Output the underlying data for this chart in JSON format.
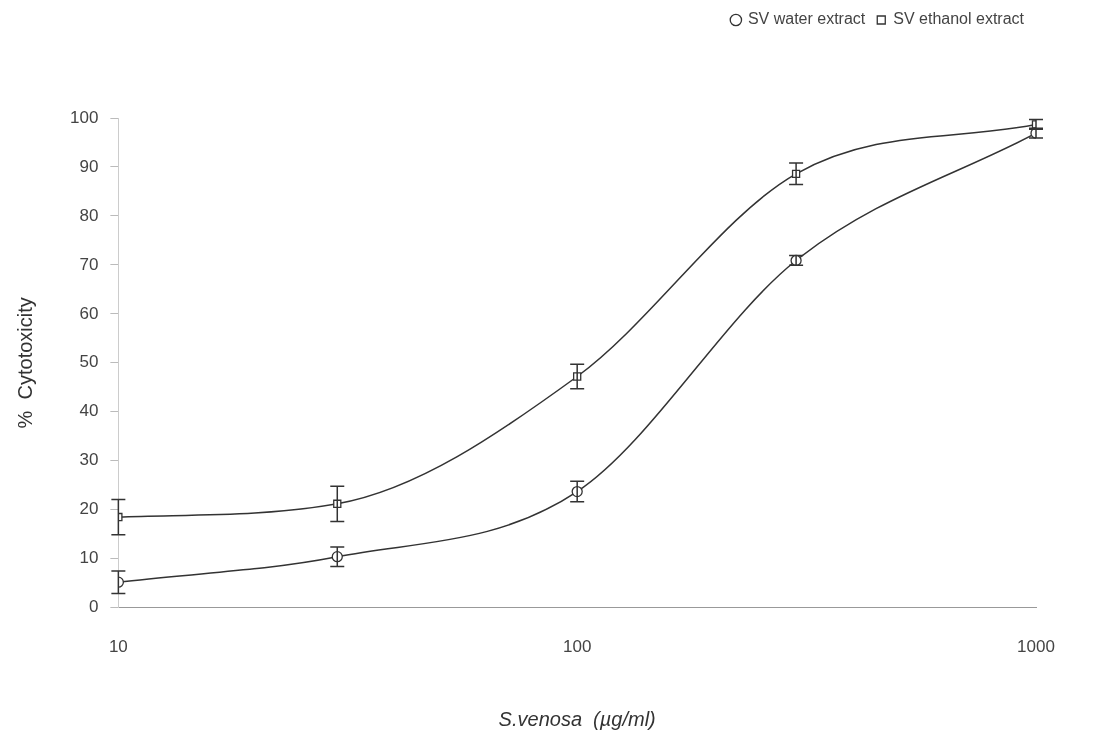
{
  "chart_data": {
    "type": "line",
    "xlabel": "S.venosa  (µg/ml)",
    "ylabel": "%  Cytotoxicity",
    "log": "x",
    "x": [
      10,
      30,
      100,
      300,
      1000
    ],
    "xlim": [
      10,
      1000
    ],
    "xticks": [
      10,
      100,
      1000
    ],
    "ylim": [
      0,
      100
    ],
    "yticks": [
      0,
      10,
      20,
      30,
      40,
      50,
      60,
      70,
      80,
      90,
      100
    ],
    "grid": false,
    "legend": "top right",
    "line_style": "solid",
    "series": [
      {
        "name": "SV water extract",
        "color": "#333333",
        "marker": "circle",
        "values": [
          5.2,
          10.4,
          23.7,
          70.9,
          96.9
        ],
        "errors": [
          2.3,
          2,
          2.1,
          1,
          1
        ]
      },
      {
        "name": "SV ethanol extract",
        "color": "#333333",
        "marker": "square",
        "values": [
          18.5,
          21.2,
          47.2,
          88.6,
          98.7
        ],
        "errors": [
          3.6,
          3.6,
          2.5,
          2.2,
          1
        ]
      }
    ]
  }
}
